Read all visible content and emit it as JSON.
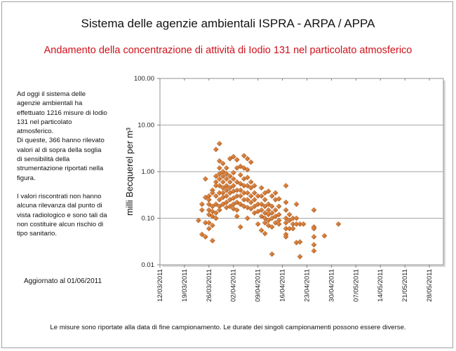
{
  "header": {
    "title": "Sistema delle agenzie ambientali ISPRA - ARPA / APPA",
    "subtitle": "Andamento della concentrazione di attività di Iodio 131 nel particolato atmosferico"
  },
  "notes": {
    "paragraph1": "Ad oggi il sistema delle agenzie ambientali  ha effettuato 1216 misure di Iodio 131 nel particolato atmosferico.",
    "paragraph2": "Di queste, 366 hanno rilevato valori al di sopra della soglia di sensibilità della strumentazione riportati nella figura.",
    "paragraph3": "I valori riscontrati  non hanno alcuna rilevanza dal punto di vista radiologico e sono tali da non costituire alcun rischio di tipo sanitario.",
    "updated": "Aggiornato al 01/06/2011"
  },
  "footer": "Le misure sono riportate alla data di fine campionamento. Le durate dei singoli campionamenti possono essere diverse.",
  "colors": {
    "marker": "#d2691e",
    "marker_edge": "#9a4a10",
    "subtitle": "#d0101a",
    "grid": "#a6a6a6"
  },
  "chart_data": {
    "type": "scatter",
    "ylabel": "milli Becquerel per m³",
    "yscale": "log",
    "ylim": [
      0.01,
      100
    ],
    "yticks": [
      "0.01",
      "0.10",
      "1.00",
      "10.00",
      "100.00"
    ],
    "xlim": [
      "12/03/2011",
      "01/06/2011"
    ],
    "xticks": [
      "12/03/2011",
      "19/03/2011",
      "26/03/2011",
      "02/04/2011",
      "09/04/2011",
      "16/04/2011",
      "23/04/2011",
      "30/04/2011",
      "07/05/2011",
      "14/05/2011",
      "21/05/2011",
      "28/05/2011"
    ],
    "grid": "horizontal",
    "marker": "diamond",
    "points": [
      {
        "date": "23/03/2011",
        "values": [
          0.09
        ]
      },
      {
        "date": "24/03/2011",
        "values": [
          0.2,
          0.15,
          0.045
        ]
      },
      {
        "date": "25/03/2011",
        "values": [
          0.7,
          0.28,
          0.08,
          0.04
        ]
      },
      {
        "date": "26/03/2011",
        "values": [
          0.3,
          0.25,
          0.2,
          0.15,
          0.12,
          0.08,
          0.06
        ]
      },
      {
        "date": "27/03/2011",
        "values": [
          0.4,
          0.35,
          0.18,
          0.14,
          0.11,
          0.07,
          0.033
        ]
      },
      {
        "date": "28/03/2011",
        "values": [
          3.0,
          0.8,
          0.6,
          0.5,
          0.3,
          0.2,
          0.13,
          0.1
        ]
      },
      {
        "date": "29/03/2011",
        "values": [
          4.0,
          1.7,
          1.2,
          0.9,
          0.7,
          0.5,
          0.35,
          0.25,
          0.18,
          0.15
        ]
      },
      {
        "date": "30/03/2011",
        "values": [
          1.5,
          1.0,
          0.8,
          0.6,
          0.45,
          0.35,
          0.28,
          0.2
        ]
      },
      {
        "date": "31/03/2011",
        "values": [
          1.2,
          0.9,
          0.7,
          0.5,
          0.4,
          0.3,
          0.22,
          0.17
        ]
      },
      {
        "date": "01/04/2011",
        "values": [
          1.9,
          0.8,
          0.6,
          0.45,
          0.35,
          0.25,
          0.18
        ]
      },
      {
        "date": "02/04/2011",
        "values": [
          2.1,
          0.95,
          0.7,
          0.5,
          0.38,
          0.27,
          0.2,
          0.16
        ]
      },
      {
        "date": "03/04/2011",
        "values": [
          1.8,
          1.2,
          0.6,
          0.4,
          0.3,
          0.22,
          0.15,
          0.11
        ]
      },
      {
        "date": "04/04/2011",
        "values": [
          1.3,
          0.85,
          0.55,
          0.4,
          0.3,
          0.2,
          0.065
        ]
      },
      {
        "date": "05/04/2011",
        "values": [
          2.2,
          1.2,
          0.7,
          0.5,
          0.35,
          0.25,
          0.18
        ]
      },
      {
        "date": "06/04/2011",
        "values": [
          1.9,
          1.1,
          0.75,
          0.5,
          0.35,
          0.25,
          0.17,
          0.1
        ]
      },
      {
        "date": "07/04/2011",
        "values": [
          1.6,
          0.6,
          0.45,
          0.3,
          0.22,
          0.16
        ]
      },
      {
        "date": "08/04/2011",
        "values": [
          0.5,
          0.35,
          0.25,
          0.18,
          0.13
        ]
      },
      {
        "date": "09/04/2011",
        "values": [
          0.3,
          0.2,
          0.14,
          0.075
        ]
      },
      {
        "date": "10/04/2011",
        "values": [
          0.45,
          0.3,
          0.2,
          0.15,
          0.11,
          0.055
        ]
      },
      {
        "date": "11/04/2011",
        "values": [
          0.35,
          0.25,
          0.18,
          0.13,
          0.1,
          0.08,
          0.047
        ]
      },
      {
        "date": "12/04/2011",
        "values": [
          0.38,
          0.2,
          0.15,
          0.12,
          0.09,
          0.07
        ]
      },
      {
        "date": "13/04/2011",
        "values": [
          0.3,
          0.18,
          0.13,
          0.1,
          0.065,
          0.017
        ]
      },
      {
        "date": "14/04/2011",
        "values": [
          0.35,
          0.25,
          0.15,
          0.11,
          0.08
        ]
      },
      {
        "date": "15/04/2011",
        "values": [
          0.26,
          0.18,
          0.12,
          0.09,
          0.075
        ]
      },
      {
        "date": "17/04/2011",
        "values": [
          0.5,
          0.22,
          0.15,
          0.1,
          0.08,
          0.06,
          0.045,
          0.04
        ]
      },
      {
        "date": "18/04/2011",
        "values": [
          0.12,
          0.09,
          0.06
        ]
      },
      {
        "date": "19/04/2011",
        "values": [
          0.1,
          0.075,
          0.06
        ]
      },
      {
        "date": "20/04/2011",
        "values": [
          0.2,
          0.1,
          0.075,
          0.03
        ]
      },
      {
        "date": "21/04/2011",
        "values": [
          0.075,
          0.031,
          0.015
        ]
      },
      {
        "date": "22/04/2011",
        "values": [
          0.075
        ]
      },
      {
        "date": "25/04/2011",
        "values": [
          0.15,
          0.065,
          0.06,
          0.04,
          0.027,
          0.02
        ]
      },
      {
        "date": "28/04/2011",
        "values": [
          0.042
        ]
      },
      {
        "date": "02/05/2011",
        "values": [
          0.075
        ]
      }
    ]
  }
}
